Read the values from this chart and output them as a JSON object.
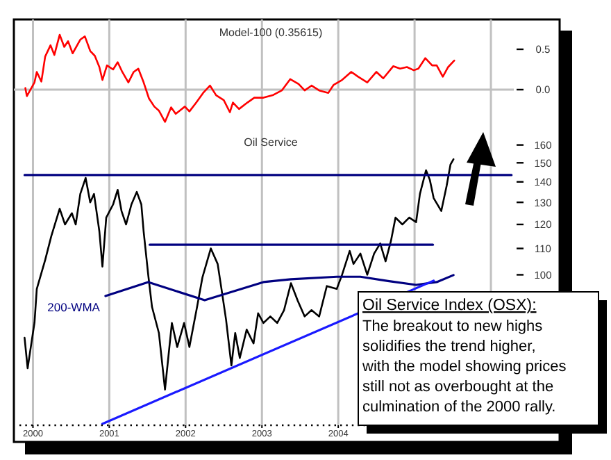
{
  "chart_data": [
    {
      "type": "line",
      "title": "Model-100 (0.35615)",
      "x": [
        1999.9,
        1999.92,
        2000.02,
        2000.05,
        2000.11,
        2000.16,
        2000.23,
        2000.28,
        2000.35,
        2000.41,
        2000.46,
        2000.52,
        2000.62,
        2000.68,
        2000.75,
        2000.81,
        2000.87,
        2000.91,
        2000.97,
        2001.05,
        2001.11,
        2001.17,
        2001.25,
        2001.32,
        2001.38,
        2001.45,
        2001.52,
        2001.59,
        2001.65,
        2001.73,
        2001.81,
        2001.87,
        2001.99,
        2002.05,
        2002.14,
        2002.23,
        2002.32,
        2002.4,
        2002.5,
        2002.58,
        2002.62,
        2002.7,
        2002.81,
        2002.9,
        2003.02,
        2003.14,
        2003.26,
        2003.37,
        2003.48,
        2003.56,
        2003.65,
        2003.75,
        2003.87,
        2003.94,
        2004.05,
        2004.17,
        2004.26,
        2004.38,
        2004.5,
        2004.59,
        2004.72,
        2004.81,
        2004.9,
        2004.99,
        2005.05,
        2005.14,
        2005.23,
        2005.29,
        2005.37,
        2005.44,
        2005.52
      ],
      "series": [
        {
          "color": "#ff0000",
          "values": [
            0.02,
            -0.08,
            0.09,
            0.22,
            0.1,
            0.41,
            0.55,
            0.43,
            0.68,
            0.53,
            0.6,
            0.45,
            0.62,
            0.66,
            0.48,
            0.42,
            0.28,
            0.12,
            0.3,
            0.25,
            0.34,
            0.22,
            0.09,
            0.22,
            0.26,
            0.09,
            -0.11,
            -0.21,
            -0.26,
            -0.4,
            -0.22,
            -0.3,
            -0.21,
            -0.27,
            -0.16,
            -0.04,
            0.05,
            -0.07,
            -0.13,
            -0.28,
            -0.16,
            -0.24,
            -0.16,
            -0.1,
            -0.1,
            -0.07,
            -0.01,
            0.13,
            0.07,
            -0.01,
            0.05,
            -0.01,
            -0.04,
            0.06,
            0.12,
            0.22,
            0.16,
            0.09,
            0.22,
            0.14,
            0.29,
            0.26,
            0.28,
            0.24,
            0.26,
            0.39,
            0.3,
            0.3,
            0.16,
            0.28,
            0.36
          ]
        }
      ],
      "xlim": [
        1999.75,
        2006.3
      ],
      "xticks": [
        2000,
        2001,
        2002,
        2003,
        2004,
        2005,
        2006
      ],
      "ylim": [
        -0.56,
        0.87
      ],
      "yticks": [
        0.5,
        {
          "value": 0,
          "label": "0.0"
        }
      ],
      "grid": "x",
      "tick_labels": "y",
      "ref_lines": [
        {
          "axis": "y",
          "value": 0,
          "color": "#c0c0c0"
        }
      ]
    },
    {
      "type": "line",
      "title": "Oil Service",
      "log": "y",
      "series": [
        {
          "color": "#000000",
          "x": [
            1999.89,
            1999.93,
            2000.02,
            2000.05,
            2000.16,
            2000.24,
            2000.35,
            2000.42,
            2000.51,
            2000.56,
            2000.62,
            2000.69,
            2000.75,
            2000.8,
            2000.87,
            2000.91,
            2000.96,
            2001.05,
            2001.11,
            2001.16,
            2001.22,
            2001.29,
            2001.36,
            2001.42,
            2001.45,
            2001.51,
            2001.56,
            2001.65,
            2001.73,
            2001.82,
            2001.89,
            2001.98,
            2002.05,
            2002.15,
            2002.22,
            2002.33,
            2002.42,
            2002.47,
            2002.53,
            2002.6,
            2002.65,
            2002.71,
            2002.8,
            2002.89,
            2002.95,
            2003.02,
            2003.11,
            2003.2,
            2003.29,
            2003.38,
            2003.47,
            2003.56,
            2003.65,
            2003.75,
            2003.85,
            2003.98,
            2004.05,
            2004.15,
            2004.2,
            2004.29,
            2004.38,
            2004.47,
            2004.55,
            2004.62,
            2004.69,
            2004.75,
            2004.84,
            2004.93,
            2005.02,
            2005.07,
            2005.15,
            2005.2,
            2005.25,
            2005.35,
            2005.42,
            2005.47,
            2005.51
          ],
          "values": [
            79.6,
            71.3,
            84.1,
            95,
            105.5,
            115,
            127,
            120,
            125,
            120,
            134,
            142,
            130,
            134,
            117,
            103,
            123,
            129,
            136,
            126,
            120,
            129,
            135,
            129,
            117,
            100,
            89,
            81,
            66,
            84,
            77,
            84,
            77,
            89,
            99,
            110,
            104,
            95,
            85,
            72,
            81,
            74,
            82,
            78,
            87,
            84,
            86,
            84,
            88,
            97,
            91,
            86,
            88,
            86,
            96,
            95,
            100,
            109,
            104,
            108,
            100,
            108,
            112,
            105,
            113,
            123,
            120,
            123,
            121,
            134,
            146,
            141,
            132,
            126,
            138,
            149,
            152
          ]
        },
        {
          "name": "200-WMA",
          "color": "#000080",
          "x": [
            2000.95,
            2001.51,
            2002.25,
            2003.02,
            2003.38,
            2003.98,
            2004.29,
            2004.65,
            2005.02,
            2005.29,
            2005.51
          ],
          "values": [
            92.6,
            97.4,
            91.2,
            97.4,
            98.4,
            99.3,
            99.3,
            97.8,
            96.4,
            97.4,
            99.9
          ]
        },
        {
          "color": "#000080",
          "x": [
            1999.89,
            2006.27
          ],
          "values": [
            143.5,
            143.5
          ]
        },
        {
          "color": "#000080",
          "x": [
            2001.53,
            2005.24
          ],
          "values": [
            111.5,
            111.5
          ]
        },
        {
          "color": "#1a1aff",
          "x": [
            2000.91,
            2005.25
          ],
          "values": [
            58.3,
            97.9
          ]
        }
      ],
      "xlim": [
        1999.75,
        2006.3
      ],
      "xticks": [
        2000,
        2001,
        2002,
        2003,
        2004,
        {
          "value": 2005,
          "label": null
        },
        {
          "value": 2006,
          "label": null
        }
      ],
      "ylim": [
        58,
        166
      ],
      "yticks": [
        100,
        110,
        120,
        130,
        140,
        150,
        160
      ],
      "grid": "x",
      "annotations": [
        "Oil Service Index (OSX):",
        "The breakout to new highs solidifies the trend higher, with the model showing prices still not as overbought at the culmination of the 2000 rally."
      ]
    }
  ]
}
